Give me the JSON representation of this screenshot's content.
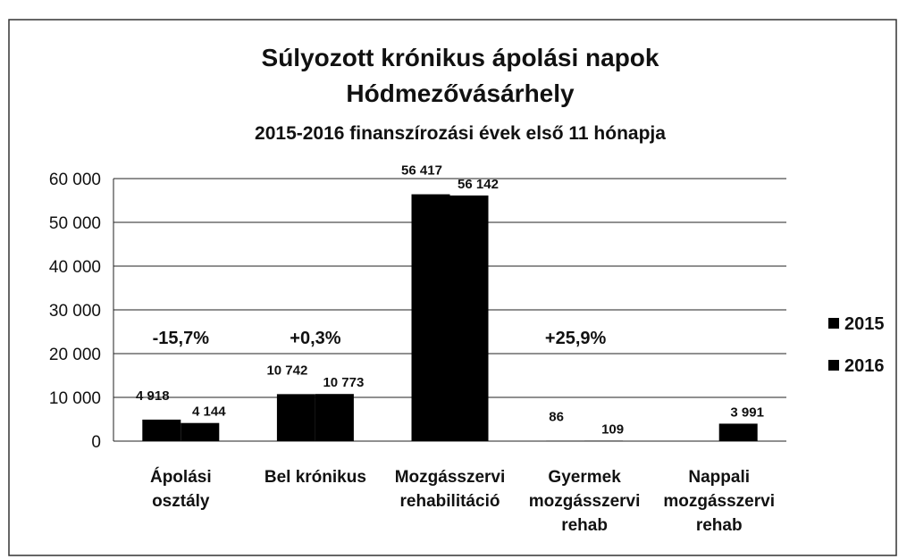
{
  "chart_data": {
    "type": "bar",
    "title": [
      "Súlyozott krónikus ápolási napok",
      "Hódmezővásárhely"
    ],
    "subtitle": "2015-2016 finanszírozási évek első 11 hónapja",
    "categories": [
      [
        "Ápolási",
        "osztály"
      ],
      [
        "Bel krónikus"
      ],
      [
        "Mozgásszervi",
        "rehabilitáció"
      ],
      [
        "Gyermek",
        "mozgásszervi",
        "rehab"
      ],
      [
        "Nappali",
        "mozgásszervi",
        "rehab"
      ]
    ],
    "series": [
      {
        "name": "2015",
        "color": "#000000",
        "values": [
          4918,
          10742,
          56417,
          86,
          null
        ],
        "value_labels": [
          "4 918",
          "10 742",
          "56 417",
          "86",
          null
        ]
      },
      {
        "name": "2016",
        "color": "#000000",
        "values": [
          4144,
          10773,
          56142,
          109,
          3991
        ],
        "value_labels": [
          "4 144",
          "10 773",
          "56 142",
          "109",
          "3 991"
        ]
      }
    ],
    "annotations": [
      "-15,7%",
      "+0,3%",
      "+25,9%"
    ],
    "ylim": [
      0,
      60000
    ],
    "yticks": [
      0,
      {
        "value": 10000,
        "label": "10 000"
      },
      {
        "value": 20000,
        "label": "20 000"
      },
      {
        "value": 30000,
        "label": "30 000"
      },
      {
        "value": 40000,
        "label": "40 000"
      },
      {
        "value": 50000,
        "label": "50 000"
      },
      {
        "value": 60000,
        "label": "60 000"
      }
    ],
    "grid": true,
    "legend": "right"
  }
}
